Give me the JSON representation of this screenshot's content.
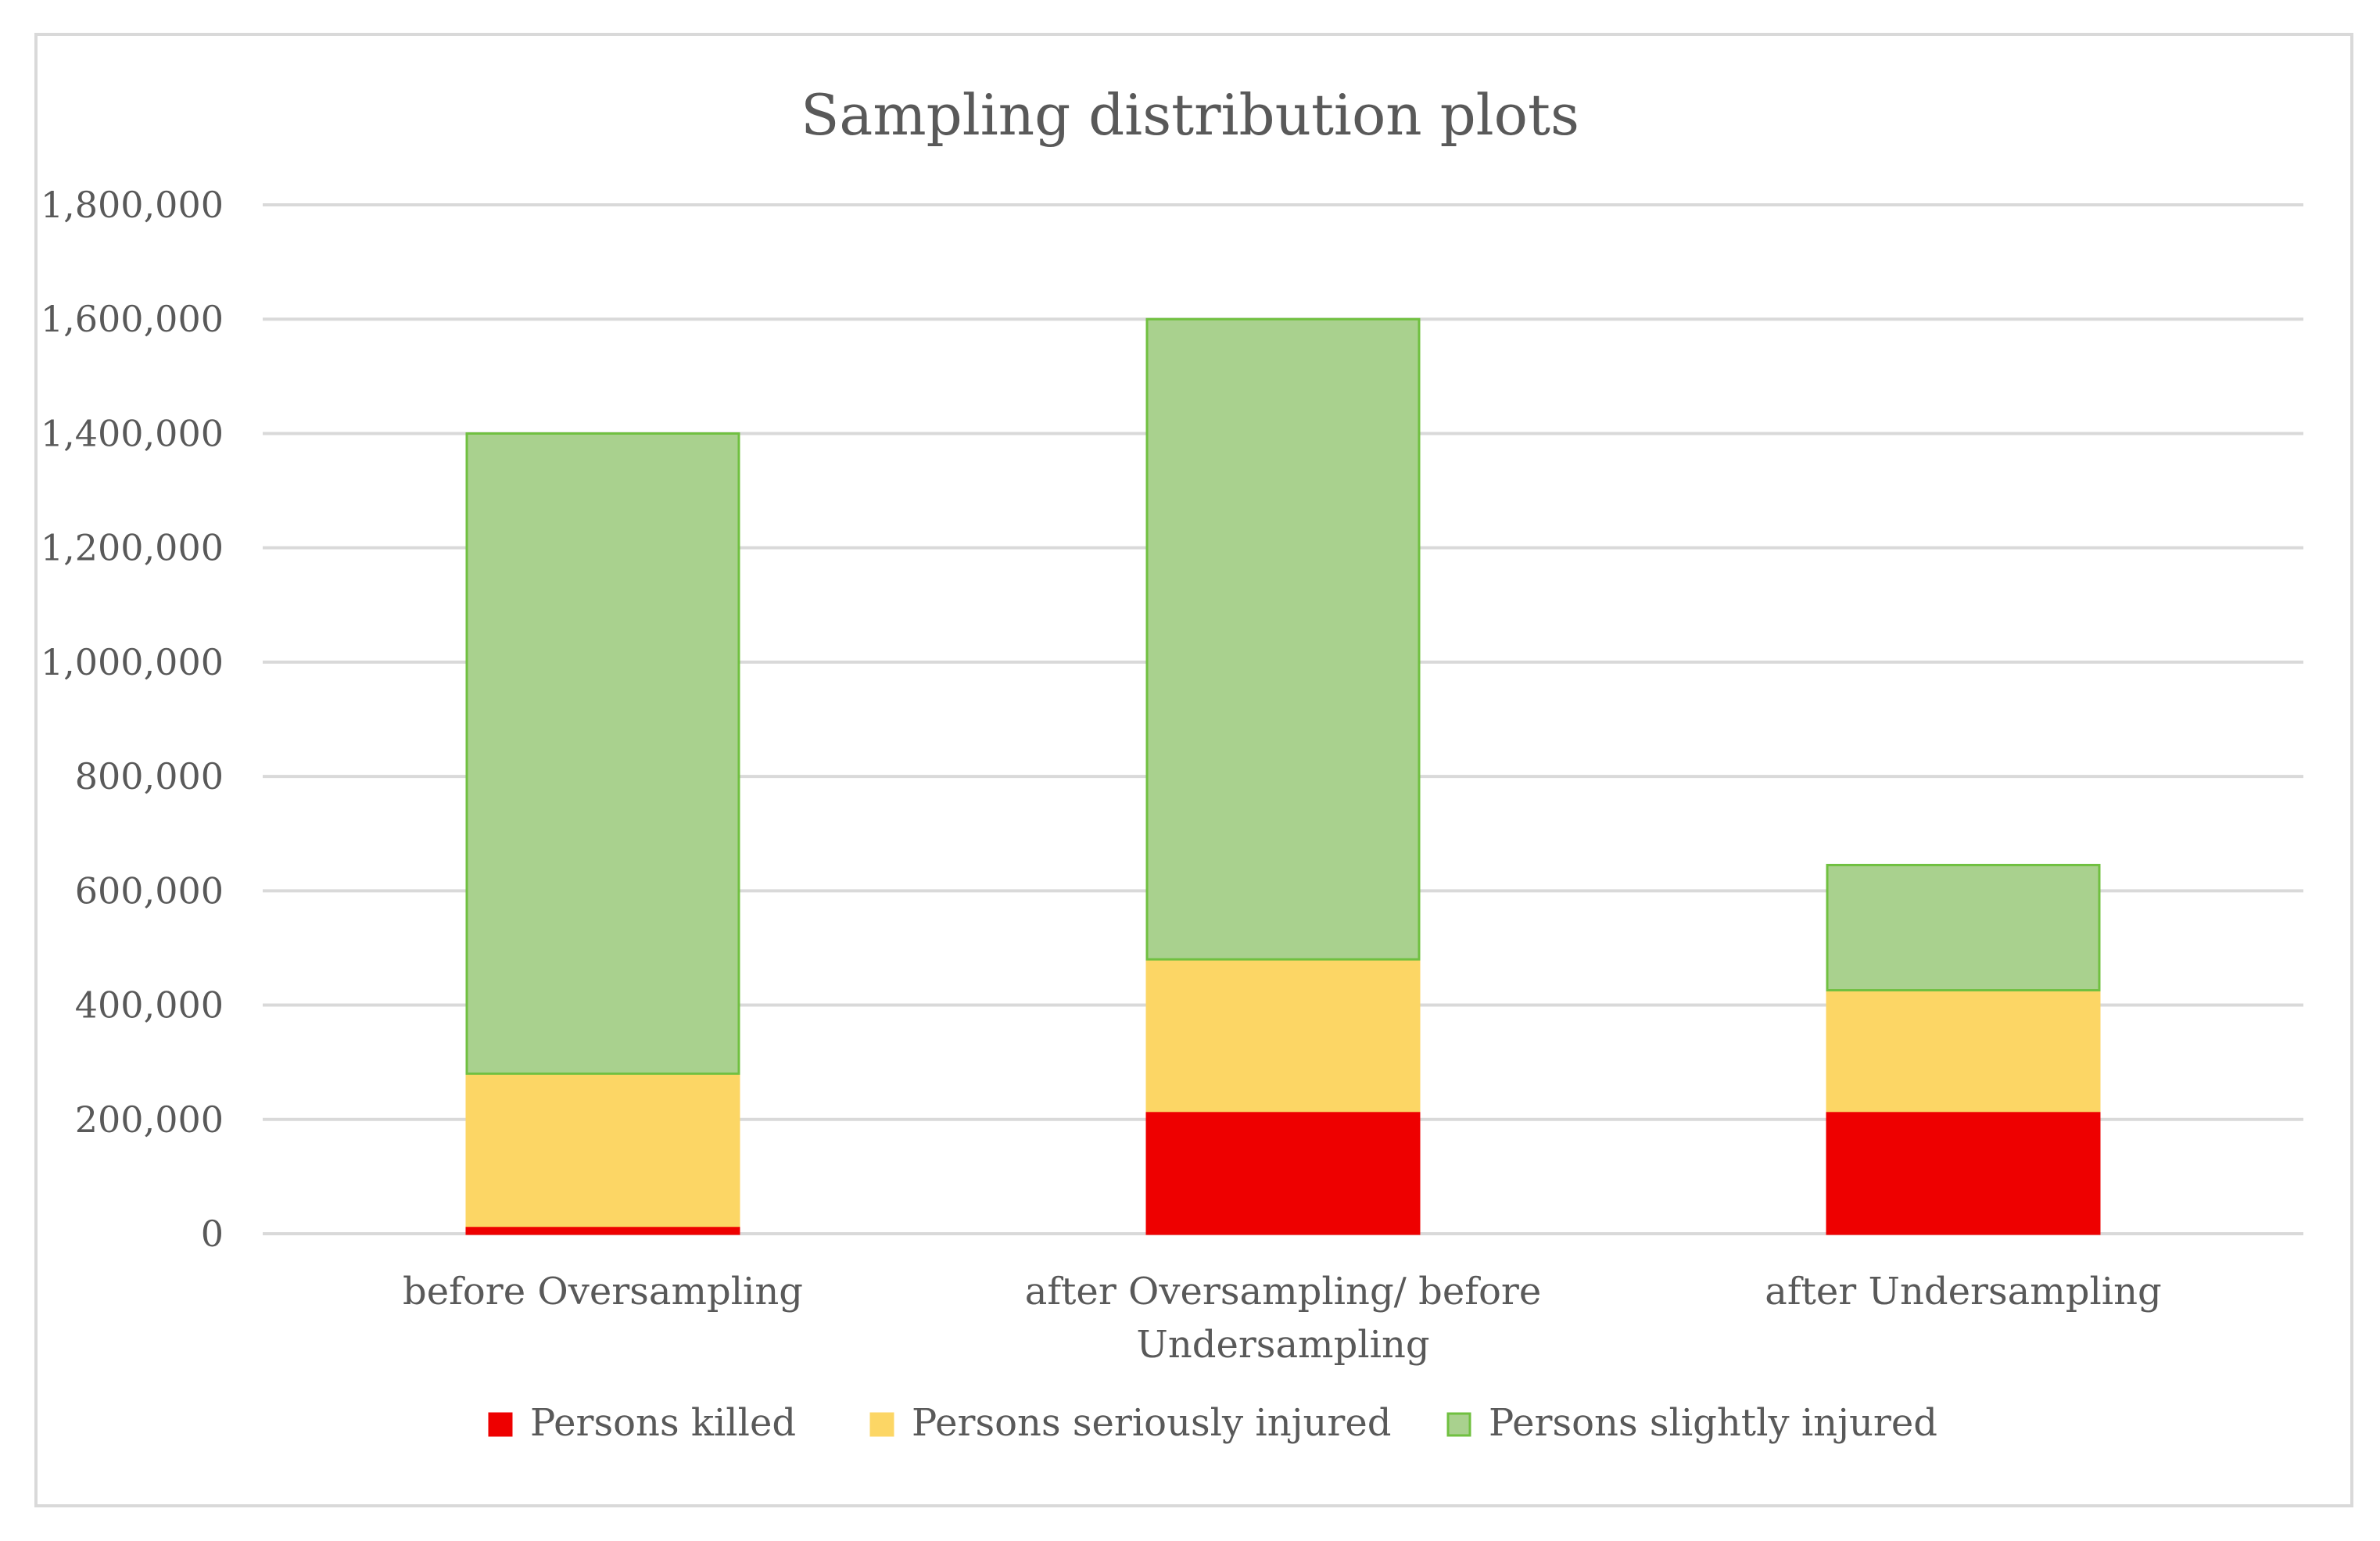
{
  "chart_data": {
    "type": "bar",
    "stacked": true,
    "title": "Sampling distribution plots",
    "xlabel": "",
    "ylabel": "",
    "ylim": [
      0,
      1800000
    ],
    "grid": true,
    "legend_position": "bottom",
    "yticks": [
      0,
      200000,
      400000,
      600000,
      800000,
      1000000,
      1200000,
      1400000,
      1600000,
      1800000
    ],
    "ytick_labels": [
      "0",
      "200,000",
      "400,000",
      "600,000",
      "800,000",
      "1,000,000",
      "1,200,000",
      "1,400,000",
      "1,600,000",
      "1,800,000"
    ],
    "categories": [
      [
        "before Oversampling"
      ],
      [
        "after Oversampling/ before",
        "Undersampling"
      ],
      [
        "after Undersampling"
      ]
    ],
    "series": [
      {
        "name": "Persons killed",
        "color": "#ee0000",
        "stroke": "#ee0000",
        "values": [
          14000,
          215000,
          215000
        ]
      },
      {
        "name": "Persons seriously injured",
        "color": "#fcd665",
        "stroke": "#fcd665",
        "values": [
          266000,
          265000,
          211000
        ]
      },
      {
        "name": "Persons slightly injured",
        "color": "#a9d18e",
        "stroke": "#70c040",
        "values": [
          1120000,
          1120000,
          219000
        ]
      }
    ]
  }
}
